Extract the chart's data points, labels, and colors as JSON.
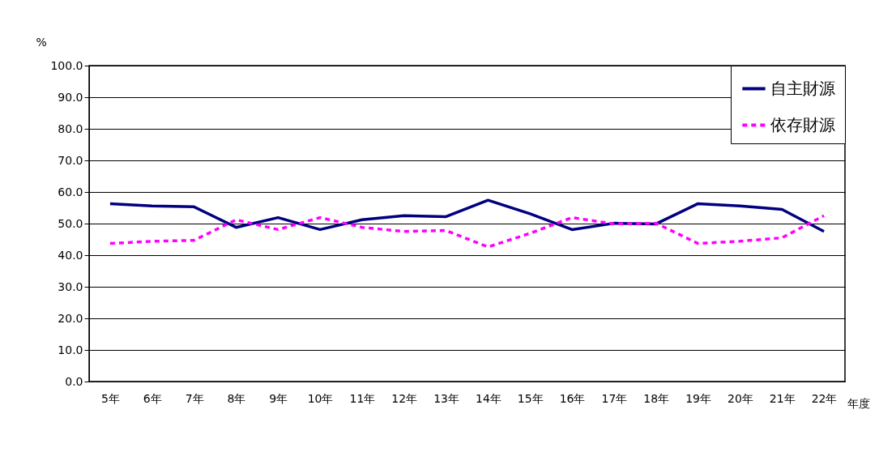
{
  "chart_data": {
    "type": "line",
    "xlabel": "年度",
    "ylabel": "%",
    "categories": [
      "5年",
      "6年",
      "7年",
      "8年",
      "9年",
      "10年",
      "11年",
      "12年",
      "13年",
      "14年",
      "15年",
      "16年",
      "17年",
      "18年",
      "19年",
      "20年",
      "21年",
      "22年"
    ],
    "series": [
      {
        "name": "自主財源",
        "color": "#000080",
        "line_style": "solid",
        "values": [
          56.3,
          55.6,
          55.3,
          48.8,
          51.9,
          48.1,
          51.2,
          52.5,
          52.2,
          57.4,
          53.1,
          48.1,
          50.1,
          49.9,
          56.3,
          55.6,
          54.5,
          47.5
        ]
      },
      {
        "name": "依存財源",
        "color": "#ff00ff",
        "line_style": "dashed",
        "values": [
          43.7,
          44.4,
          44.7,
          51.2,
          48.1,
          51.9,
          48.8,
          47.5,
          47.8,
          42.6,
          46.9,
          51.9,
          49.9,
          50.1,
          43.7,
          44.4,
          45.5,
          52.5
        ]
      }
    ],
    "ylim": [
      0,
      100
    ],
    "yticks": [
      {
        "value": 0,
        "label": "0.0"
      },
      {
        "value": 10,
        "label": "10.0"
      },
      {
        "value": 20,
        "label": "20.0"
      },
      {
        "value": 30,
        "label": "30.0"
      },
      {
        "value": 40,
        "label": "40.0"
      },
      {
        "value": 50,
        "label": "50.0"
      },
      {
        "value": 60,
        "label": "60.0"
      },
      {
        "value": 70,
        "label": "70.0"
      },
      {
        "value": 80,
        "label": "80.0"
      },
      {
        "value": 90,
        "label": "90.0"
      },
      {
        "value": 100,
        "label": "100.0"
      }
    ],
    "grid": "y",
    "legend": "top right",
    "marker": "none"
  }
}
